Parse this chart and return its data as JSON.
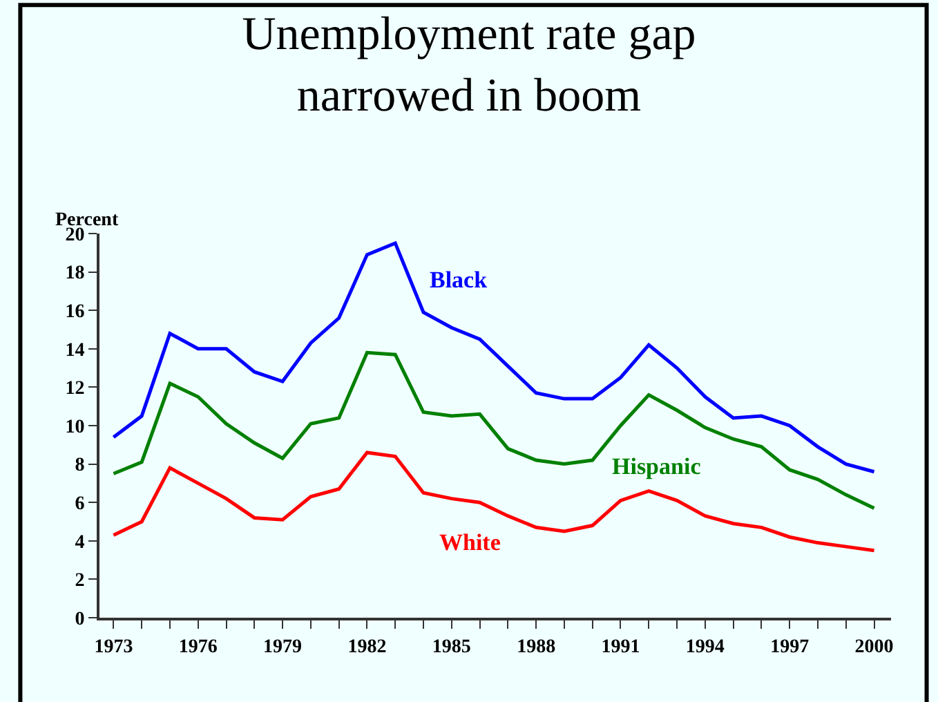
{
  "chart_data": {
    "type": "line",
    "title": "Unemployment rate gap\nnarrowed in boom",
    "ylabel": "Percent",
    "x": [
      1973,
      1974,
      1975,
      1976,
      1977,
      1978,
      1979,
      1980,
      1981,
      1982,
      1983,
      1984,
      1985,
      1986,
      1987,
      1988,
      1989,
      1990,
      1991,
      1992,
      1993,
      1994,
      1995,
      1996,
      1997,
      1998,
      1999,
      2000
    ],
    "series": [
      {
        "name": "Black",
        "color": "#0000ff",
        "values": [
          9.4,
          10.5,
          14.8,
          14.0,
          14.0,
          12.8,
          12.3,
          14.3,
          15.6,
          18.9,
          19.5,
          15.9,
          15.1,
          14.5,
          13.1,
          11.7,
          11.4,
          11.4,
          12.5,
          14.2,
          13.0,
          11.5,
          10.4,
          10.5,
          10.0,
          8.9,
          8.0,
          7.6
        ]
      },
      {
        "name": "Hispanic",
        "color": "#008000",
        "values": [
          7.5,
          8.1,
          12.2,
          11.5,
          10.1,
          9.1,
          8.3,
          10.1,
          10.4,
          13.8,
          13.7,
          10.7,
          10.5,
          10.6,
          8.8,
          8.2,
          8.0,
          8.2,
          10.0,
          11.6,
          10.8,
          9.9,
          9.3,
          8.9,
          7.7,
          7.2,
          6.4,
          5.7
        ]
      },
      {
        "name": "White",
        "color": "#ff0000",
        "values": [
          4.3,
          5.0,
          7.8,
          7.0,
          6.2,
          5.2,
          5.1,
          6.3,
          6.7,
          8.6,
          8.4,
          6.5,
          6.2,
          6.0,
          5.3,
          4.7,
          4.5,
          4.8,
          6.1,
          6.6,
          6.1,
          5.3,
          4.9,
          4.7,
          4.2,
          3.9,
          3.7,
          3.5
        ]
      }
    ],
    "xlim": [
      1972.5,
      2000.6
    ],
    "xticks": [
      1973,
      {
        "value": 1974,
        "label": null
      },
      {
        "value": 1975,
        "label": null
      },
      1976,
      {
        "value": 1977,
        "label": null
      },
      {
        "value": 1978,
        "label": null
      },
      1979,
      {
        "value": 1980,
        "label": null
      },
      {
        "value": 1981,
        "label": null
      },
      1982,
      {
        "value": 1983,
        "label": null
      },
      {
        "value": 1984,
        "label": null
      },
      1985,
      {
        "value": 1986,
        "label": null
      },
      {
        "value": 1987,
        "label": null
      },
      1988,
      {
        "value": 1989,
        "label": null
      },
      {
        "value": 1990,
        "label": null
      },
      1991,
      {
        "value": 1992,
        "label": null
      },
      {
        "value": 1993,
        "label": null
      },
      1994,
      {
        "value": 1995,
        "label": null
      },
      {
        "value": 1996,
        "label": null
      },
      1997,
      {
        "value": 1998,
        "label": null
      },
      {
        "value": 1999,
        "label": null
      },
      2000
    ],
    "ylim": [
      0,
      20
    ],
    "yticks": [
      0,
      2,
      4,
      6,
      8,
      10,
      12,
      14,
      16,
      18,
      20
    ],
    "grid": false,
    "legend": false,
    "marker": "none",
    "line_style": "solid"
  }
}
